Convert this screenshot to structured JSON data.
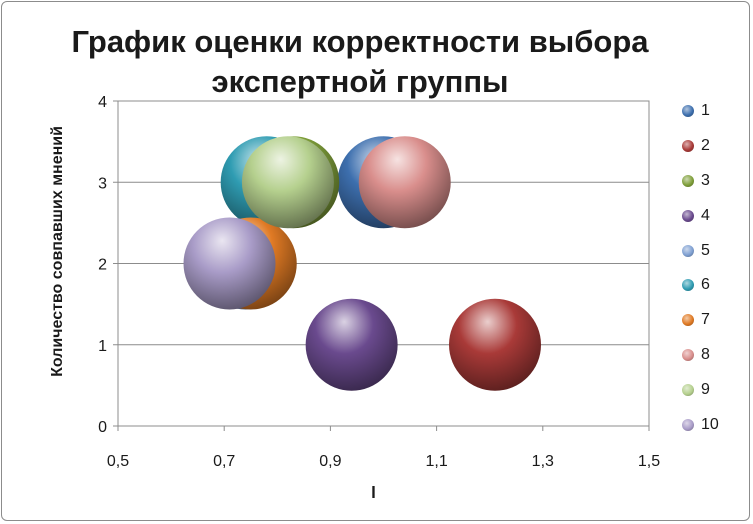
{
  "chart_data": {
    "type": "bubble",
    "title": "График оценки корректности выбора\nэкспертной группы",
    "xlabel": "l",
    "ylabel": "Количество совпавших мнений",
    "xlim": [
      0.5,
      1.5
    ],
    "ylim": [
      0,
      4
    ],
    "xticks": [
      "0,5",
      "0,7",
      "0,9",
      "1,1",
      "1,3",
      "1,5"
    ],
    "yticks": [
      "0",
      "1",
      "2",
      "3",
      "4"
    ],
    "grid": true,
    "legend_position": "right",
    "series": [
      {
        "name": "1",
        "x": 1.0,
        "y": 3,
        "color": "#3d6fae"
      },
      {
        "name": "2",
        "x": 1.21,
        "y": 1,
        "color": "#a93a38"
      },
      {
        "name": "3",
        "x": 0.83,
        "y": 3,
        "color": "#7f9f3a"
      },
      {
        "name": "4",
        "x": 0.94,
        "y": 1,
        "color": "#6a4a8e"
      },
      {
        "name": "5",
        "x": 0.74,
        "y": 2,
        "color": "#7fa0d2"
      },
      {
        "name": "6",
        "x": 0.78,
        "y": 3,
        "color": "#2f9cb2"
      },
      {
        "name": "7",
        "x": 0.75,
        "y": 2,
        "color": "#e07a24"
      },
      {
        "name": "8",
        "x": 1.04,
        "y": 3,
        "color": "#d98e8c"
      },
      {
        "name": "9",
        "x": 0.82,
        "y": 3,
        "color": "#b5d08e"
      },
      {
        "name": "10",
        "x": 0.71,
        "y": 2,
        "color": "#a99cc8"
      }
    ]
  }
}
